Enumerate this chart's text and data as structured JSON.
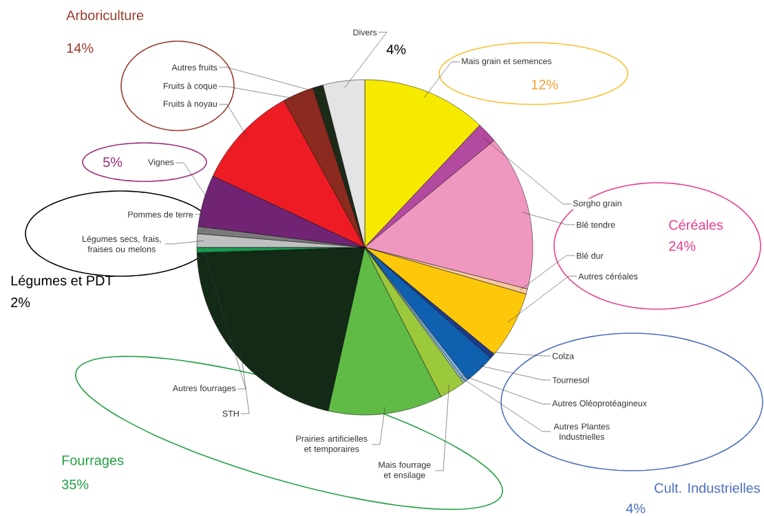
{
  "chart_data": {
    "type": "pie",
    "categories": [
      "Mais grain et semences",
      "Sorgho grain",
      "Blé tendre",
      "Blé dur",
      "Autres céréales",
      "Colza",
      "Tournesol",
      "Autres Oléoprotéagineux",
      "Autres Plantes Industrielles",
      "Mais fourrage et ensilage",
      "Prairies artificielles et temporaires",
      "STH",
      "Autres fourrages",
      "Légumes secs, frais, fraises ou melons",
      "Pommes de terre",
      "Vignes",
      "Fruits à noyau",
      "Fruits à coque",
      "Autres fruits",
      "Divers"
    ],
    "values": [
      12,
      2,
      15,
      0.5,
      6.5,
      0.5,
      3,
      0.3,
      0.2,
      2.5,
      11,
      21,
      0.5,
      1.3,
      0.7,
      5,
      10,
      3,
      1,
      4
    ],
    "colors": [
      "#f5ea00",
      "#b44aa0",
      "#f097c0",
      "#f8c9a0",
      "#fdc80a",
      "#1f3a8a",
      "#1060b0",
      "#80b0d8",
      "#a0c8e0",
      "#9cc83c",
      "#60bb46",
      "#132a17",
      "#1a9a50",
      "#c0c0c0",
      "#7a7a7a",
      "#712474",
      "#ed1c24",
      "#8b2a1e",
      "#1c2a18",
      "#e4e4e4"
    ],
    "annotations": [
      "Arboriculture",
      "14%",
      "4%",
      "12%",
      "Céréales",
      "24%",
      "Cult. Industrielles",
      "4%",
      "Fourrages",
      "35%",
      "Légumes et PDT",
      "2%",
      "5%"
    ]
  }
}
